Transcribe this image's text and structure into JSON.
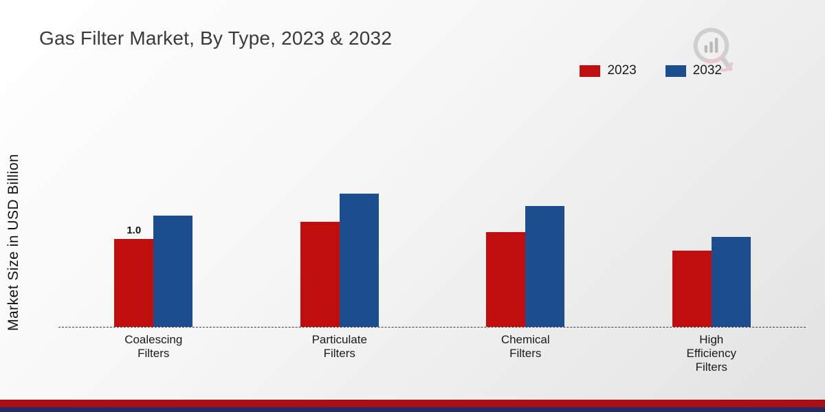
{
  "title": "Gas Filter Market, By Type, 2023 & 2032",
  "ylabel": "Market Size in USD Billion",
  "legend": {
    "items": [
      {
        "label": "2023",
        "color": "#c00d0d"
      },
      {
        "label": "2032",
        "color": "#1c4e8f"
      }
    ]
  },
  "chart_data": {
    "type": "bar",
    "title": "Gas Filter Market, By Type, 2023 & 2032",
    "ylabel": "Market Size in USD Billion",
    "categories": [
      "Coalescing\nFilters",
      "Particulate\nFilters",
      "Chemical\nFilters",
      "High\nEfficiency\nFilters"
    ],
    "series": [
      {
        "name": "2023",
        "color": "#c00d0d",
        "values": [
          1.0,
          1.2,
          1.08,
          0.87
        ]
      },
      {
        "name": "2032",
        "color": "#1c4e8f",
        "values": [
          1.27,
          1.52,
          1.38,
          1.03
        ]
      }
    ],
    "annotations": [
      {
        "category": 0,
        "series": 0,
        "text": "1.0"
      }
    ],
    "ylim": [
      0,
      2.4
    ],
    "grid": false,
    "legend_position": "top-right",
    "baseline_style": "dashed"
  }
}
